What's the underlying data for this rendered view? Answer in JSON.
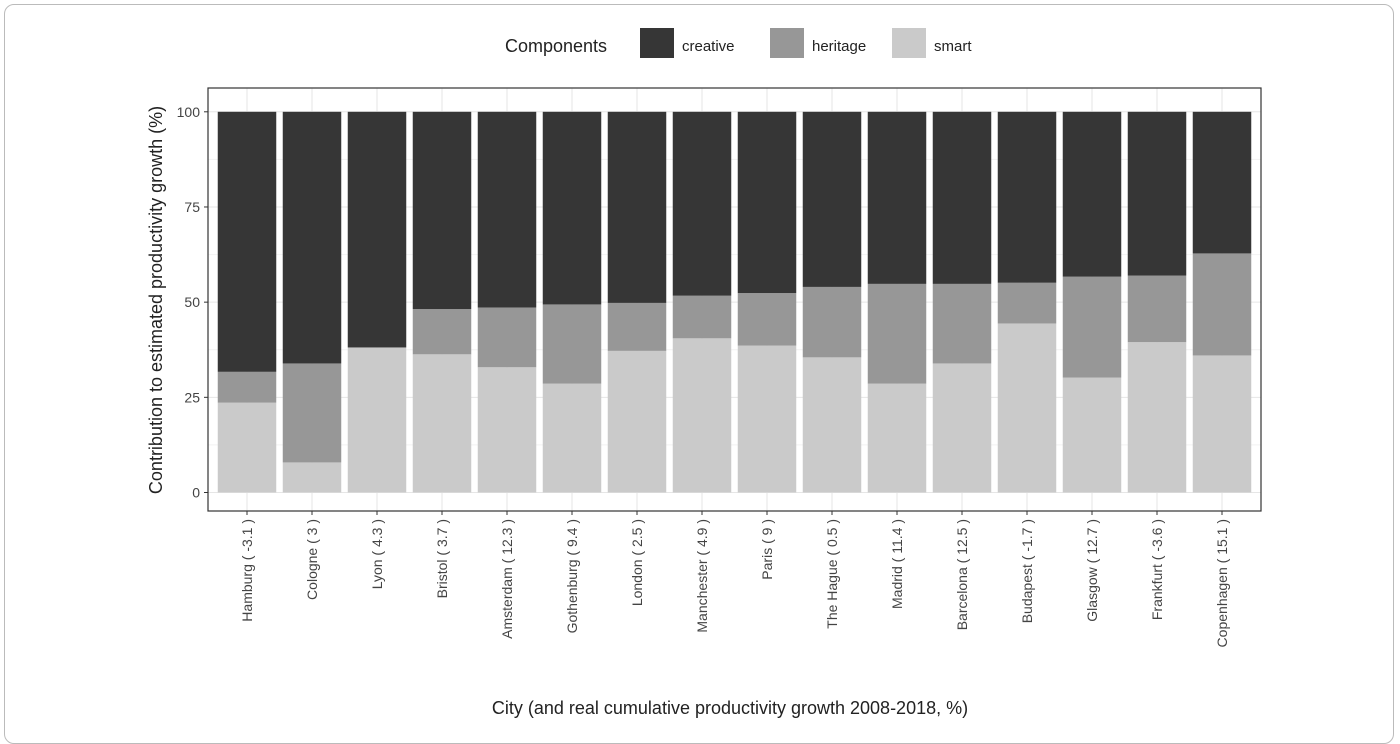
{
  "chart_data": {
    "type": "bar",
    "stacked": true,
    "xlabel": "City (and real cumulative productivity growth 2008-2018, %)",
    "ylabel": "Contribution to estimated productivity growth (%)",
    "ylim": [
      0,
      100
    ],
    "yticks": [
      0,
      25,
      50,
      75,
      100
    ],
    "grid": true,
    "legend": {
      "title": "Components",
      "placement": "top"
    },
    "categories": [
      "Hamburg ( -3.1 )",
      "Cologne ( 3 )",
      "Lyon ( 4.3 )",
      "Bristol ( 3.7 )",
      "Amsterdam ( 12.3 )",
      "Gothenburg ( 9.4 )",
      "London ( 2.5 )",
      "Manchester ( 4.9 )",
      "Paris ( 9 )",
      "The Hague ( 0.5 )",
      "Madrid ( 11.4 )",
      "Barcelona ( 12.5 )",
      "Budapest ( -1.7 )",
      "Glasgow ( 12.7 )",
      "Frankfurt ( -3.6 )",
      "Copenhagen ( 15.1 )"
    ],
    "series": [
      {
        "name": "smart",
        "color": "#cacaca",
        "values": [
          23.6,
          7.9,
          38.1,
          36.3,
          32.9,
          28.6,
          37.2,
          40.5,
          38.6,
          35.5,
          28.6,
          33.9,
          44.4,
          30.2,
          39.5,
          36.0
        ]
      },
      {
        "name": "heritage",
        "color": "#979797",
        "values": [
          8.1,
          26.0,
          0,
          11.9,
          15.7,
          20.8,
          12.6,
          11.2,
          13.8,
          18.5,
          26.2,
          20.9,
          10.7,
          26.5,
          17.5,
          26.8
        ]
      },
      {
        "name": "creative",
        "color": "#363636",
        "values": [
          68.3,
          66.1,
          61.9,
          51.8,
          51.4,
          50.6,
          50.2,
          48.3,
          47.6,
          46.0,
          45.2,
          45.2,
          44.9,
          43.3,
          43.0,
          37.2
        ]
      }
    ],
    "legend_order": [
      "creative",
      "heritage",
      "smart"
    ]
  }
}
